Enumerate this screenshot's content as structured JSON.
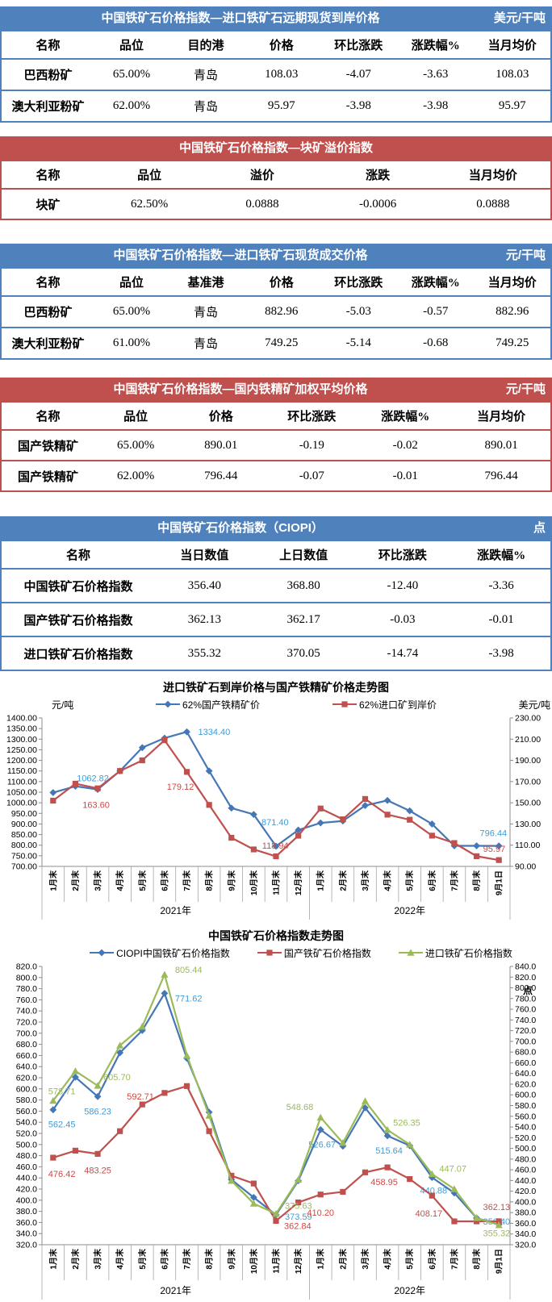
{
  "report": {
    "tables": [
      {
        "theme": "blue",
        "title": "中国铁矿石价格指数—进口铁矿石远期现货到岸价格",
        "unit": "美元/干吨",
        "columns": [
          "名称",
          "品位",
          "目的港",
          "价格",
          "环比涨跌",
          "涨跌幅%",
          "当月均价"
        ],
        "rows": [
          [
            "巴西粉矿",
            "65.00%",
            "青岛",
            "108.03",
            "-4.07",
            "-3.63",
            "108.03"
          ],
          [
            "澳大利亚粉矿",
            "62.00%",
            "青岛",
            "95.97",
            "-3.98",
            "-3.98",
            "95.97"
          ]
        ]
      },
      {
        "theme": "red",
        "title": "中国铁矿石价格指数—块矿溢价指数",
        "unit": "",
        "columns": [
          "名称",
          "品位",
          "溢价",
          "涨跌",
          "当月均价"
        ],
        "rows": [
          [
            "块矿",
            "62.50%",
            "0.0888",
            "-0.0006",
            "0.0888"
          ]
        ]
      },
      {
        "theme": "blue",
        "title": "中国铁矿石价格指数—进口铁矿石现货成交价格",
        "unit": "元/干吨",
        "columns": [
          "名称",
          "品位",
          "基准港",
          "价格",
          "环比涨跌",
          "涨跌幅%",
          "当月均价"
        ],
        "rows": [
          [
            "巴西粉矿",
            "65.00%",
            "青岛",
            "882.96",
            "-5.03",
            "-0.57",
            "882.96"
          ],
          [
            "澳大利亚粉矿",
            "61.00%",
            "青岛",
            "749.25",
            "-5.14",
            "-0.68",
            "749.25"
          ]
        ]
      },
      {
        "theme": "red",
        "title": "中国铁矿石价格指数—国内铁精矿加权平均价格",
        "unit": "元/干吨",
        "columns": [
          "名称",
          "品位",
          "价格",
          "环比涨跌",
          "涨跌幅%",
          "当月均价"
        ],
        "rows": [
          [
            "国产铁精矿",
            "65.00%",
            "890.01",
            "-0.19",
            "-0.02",
            "890.01"
          ],
          [
            "国产铁精矿",
            "62.00%",
            "796.44",
            "-0.07",
            "-0.01",
            "796.44"
          ]
        ]
      },
      {
        "theme": "blue",
        "title": "中国铁矿石价格指数（CIOPI）",
        "unit": "点",
        "columns": [
          "名称",
          "当日数值",
          "上日数值",
          "环比涨跌",
          "涨跌幅%"
        ],
        "rows": [
          [
            "中国铁矿石价格指数",
            "356.40",
            "368.80",
            "-12.40",
            "-3.36"
          ],
          [
            "国产铁矿石价格指数",
            "362.13",
            "362.17",
            "-0.03",
            "-0.01"
          ],
          [
            "进口铁矿石价格指数",
            "355.32",
            "370.05",
            "-14.74",
            "-3.98"
          ]
        ]
      }
    ]
  },
  "chart_data": [
    {
      "type": "line",
      "title": "进口铁矿石到岸价格与国产铁精矿价格走势图",
      "left_axis": {
        "label": "元/吨",
        "min": 700,
        "max": 1400,
        "step": 50
      },
      "right_axis": {
        "label": "美元/吨",
        "min": 90,
        "max": 230,
        "step": 20
      },
      "x": [
        "1月末",
        "2月末",
        "3月末",
        "4月末",
        "5月末",
        "6月末",
        "7月末",
        "8月末",
        "9月末",
        "10月末",
        "11月末",
        "12月末",
        "1月末",
        "2月末",
        "3月末",
        "4月末",
        "5月末",
        "6月末",
        "7月末",
        "8月末",
        "9月1日"
      ],
      "year_groups": [
        {
          "label": "2021年",
          "count": 12
        },
        {
          "label": "2022年",
          "count": 9
        }
      ],
      "legend_position": "top",
      "grid": false,
      "series": [
        {
          "name": "62%国产铁精矿价",
          "color": "#4576B5",
          "label_color": "#3E9CD9",
          "marker": "diamond",
          "axis": "left",
          "values": [
            1048,
            1078,
            1062.82,
            1150,
            1260,
            1305,
            1334.4,
            1150,
            975,
            945,
            795,
            871.4,
            905,
            914,
            987,
            1011,
            962,
            900,
            797,
            797,
            796.44
          ],
          "labels": [
            [
              2,
              "1062.82",
              -6,
              -10,
              "middle"
            ],
            [
              6,
              "1334.40",
              14,
              4,
              "start"
            ],
            [
              11,
              "871.40",
              -12,
              -6,
              "end"
            ],
            [
              20,
              "796.44",
              10,
              -12,
              "end"
            ]
          ]
        },
        {
          "name": "62%进口矿到岸价",
          "color": "#C0504D",
          "label_color": "#CC4B45",
          "marker": "square",
          "axis": "right",
          "values": [
            152,
            168,
            163.6,
            180,
            190,
            209,
            179.12,
            148,
            117,
            106,
            99.5,
            118.94,
            144.6,
            134.4,
            153.6,
            138.8,
            134,
            119,
            112,
            99.6,
            95.97
          ],
          "labels": [
            [
              2,
              "163.60",
              -2,
              24,
              "middle"
            ],
            [
              6,
              "179.12",
              -8,
              22,
              "middle"
            ],
            [
              11,
              "118.94",
              -12,
              16,
              "end"
            ],
            [
              20,
              "95.97",
              8,
              -10,
              "end"
            ]
          ]
        }
      ]
    },
    {
      "type": "line",
      "title": "中国铁矿石价格指数走势图",
      "left_axis": {
        "label": "",
        "min": 320,
        "max": 820,
        "step": 20
      },
      "right_axis": {
        "label": "点",
        "min": 320,
        "max": 840,
        "step": 20
      },
      "x": [
        "1月末",
        "2月末",
        "3月末",
        "4月末",
        "5月末",
        "6月末",
        "7月末",
        "8月末",
        "9月末",
        "10月末",
        "11月末",
        "12月末",
        "1月末",
        "2月末",
        "3月末",
        "4月末",
        "5月末",
        "6月末",
        "7月末",
        "8月末",
        "9月1日"
      ],
      "year_groups": [
        {
          "label": "2021年",
          "count": 12
        },
        {
          "label": "2022年",
          "count": 9
        }
      ],
      "legend_position": "top",
      "grid": false,
      "series": [
        {
          "name": "CIOPI中国铁矿石价格指数",
          "color": "#4576B5",
          "label_color": "#3E9CD9",
          "marker": "diamond",
          "axis": "left",
          "values": [
            562.45,
            621,
            586.23,
            665,
            705,
            771.62,
            655,
            558,
            437,
            405,
            373.59,
            435,
            526.67,
            497,
            566,
            515.64,
            498,
            440.88,
            413,
            368,
            356.4
          ],
          "labels": [
            [
              0,
              "562.45",
              -6,
              22,
              "start"
            ],
            [
              2,
              "586.23",
              0,
              22,
              "middle"
            ],
            [
              5,
              "771.62",
              13,
              10,
              "start"
            ],
            [
              10,
              "373.59",
              11,
              6,
              "start"
            ],
            [
              12,
              "526.67",
              2,
              22,
              "middle"
            ],
            [
              15,
              "515.64",
              2,
              22,
              "middle"
            ],
            [
              17,
              "440.88",
              2,
              20,
              "middle"
            ],
            [
              20,
              "356.40",
              14,
              0,
              "end"
            ]
          ]
        },
        {
          "name": "国产铁矿石价格指数",
          "color": "#C0504D",
          "label_color": "#CC4B45",
          "marker": "square",
          "axis": "left",
          "values": [
            476.42,
            489,
            483.25,
            524,
            572,
            592.71,
            605,
            524,
            444,
            430,
            362.84,
            396,
            410.2,
            415,
            450,
            458.95,
            438,
            408.17,
            362,
            362,
            362.13
          ],
          "labels": [
            [
              0,
              "476.42",
              -6,
              24,
              "start"
            ],
            [
              2,
              "483.25",
              0,
              24,
              "middle"
            ],
            [
              5,
              "592.71",
              -13,
              8,
              "end"
            ],
            [
              10,
              "362.84",
              10,
              10,
              "start"
            ],
            [
              12,
              "410.20",
              0,
              26,
              "middle"
            ],
            [
              15,
              "458.95",
              -4,
              22,
              "middle"
            ],
            [
              17,
              "408.17",
              -4,
              26,
              "middle"
            ],
            [
              20,
              "362.13",
              14,
              -14,
              "end"
            ]
          ]
        },
        {
          "name": "进口铁矿石价格指数",
          "color": "#9BBB59",
          "label_color": "#9BBB59",
          "marker": "triangle",
          "axis": "left",
          "values": [
            578.71,
            632,
            605.7,
            678,
            712,
            805.44,
            660,
            552,
            435,
            394,
            375.63,
            437,
            548.68,
            503,
            578,
            526.35,
            500,
            447.07,
            420,
            368,
            355.32
          ],
          "labels": [
            [
              0,
              "578.71",
              -6,
              -8,
              "start"
            ],
            [
              2,
              "605.70",
              7,
              -7,
              "start"
            ],
            [
              5,
              "805.44",
              13,
              -2,
              "start"
            ],
            [
              10,
              "375.63",
              11,
              -6,
              "start"
            ],
            [
              12,
              "548.68",
              -9,
              -9,
              "end"
            ],
            [
              15,
              "526.35",
              7,
              -5,
              "start"
            ],
            [
              17,
              "447.07",
              9,
              -3,
              "start"
            ],
            [
              20,
              "355.32",
              14,
              14,
              "end"
            ]
          ]
        }
      ]
    }
  ]
}
